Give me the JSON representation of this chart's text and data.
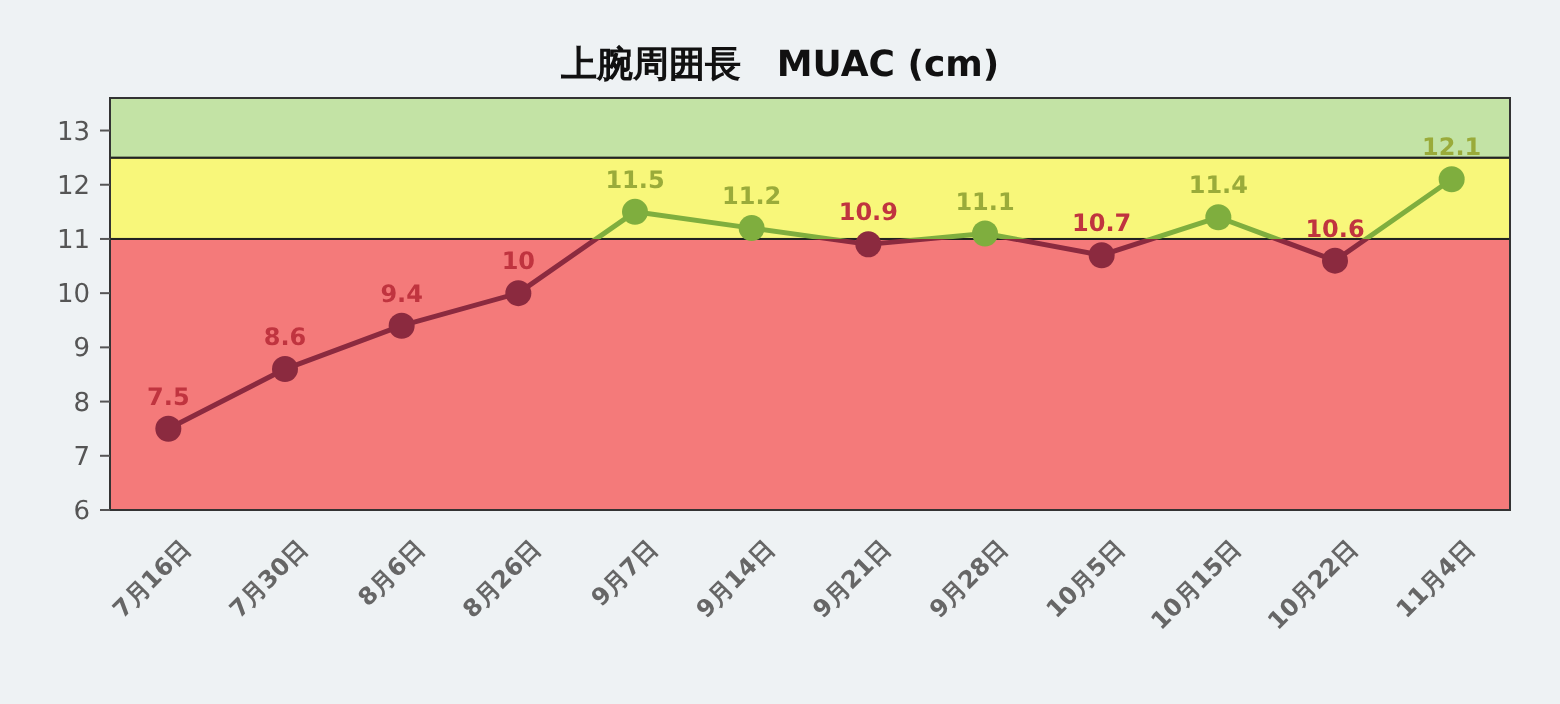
{
  "chart_data": {
    "type": "line",
    "title": "上腕周囲長　MUAC (cm)",
    "categories": [
      "7月16日",
      "7月30日",
      "8月6日",
      "8月26日",
      "9月7日",
      "9月14日",
      "9月21日",
      "9月28日",
      "10月5日",
      "10月15日",
      "10月22日",
      "11月4日"
    ],
    "series": [
      {
        "values": [
          7.5,
          8.6,
          9.4,
          10,
          11.5,
          11.2,
          10.9,
          11.1,
          10.7,
          11.4,
          10.6,
          12.1
        ],
        "colors": [
          "#8b2a3f",
          "#8b2a3f",
          "#8b2a3f",
          "#8b2a3f",
          "#7fae3e",
          "#7fae3e",
          "#8b2a3f",
          "#7fae3e",
          "#8b2a3f",
          "#7fae3e",
          "#8b2a3f",
          "#7fae3e"
        ]
      }
    ],
    "ylim": [
      6,
      13.6
    ],
    "yticks": [
      6,
      7,
      8,
      9,
      10,
      11,
      12,
      13
    ],
    "bands": [
      {
        "axis": "y",
        "from": 6,
        "to": 11,
        "color": "#f47a7a"
      },
      {
        "axis": "y",
        "from": 11,
        "to": 12.5,
        "color": "#f8f77a"
      },
      {
        "axis": "y",
        "from": 12.5,
        "to": 13.6,
        "color": "#c3e3a5"
      }
    ],
    "data_labels": true,
    "marker": "circle"
  }
}
